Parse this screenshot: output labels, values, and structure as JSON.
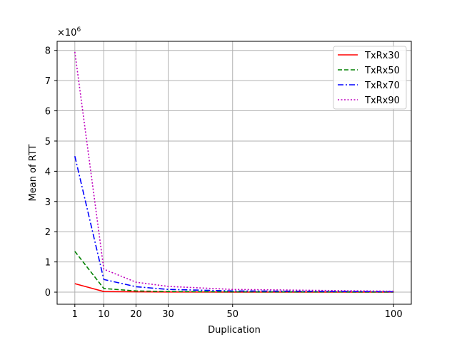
{
  "chart_data": {
    "type": "line",
    "xlabel": "Duplication",
    "ylabel": "Mean of RTT",
    "y_multiplier": "×10",
    "y_multiplier_exp": "6",
    "xlim": [
      -4.5,
      105.5
    ],
    "ylim": [
      -0.4,
      8.3
    ],
    "xticks": [
      1,
      10,
      20,
      30,
      50,
      100
    ],
    "xtick_labels": [
      "1",
      "10",
      "20",
      "30",
      "50",
      "100"
    ],
    "yticks": [
      0,
      1,
      2,
      3,
      4,
      5,
      6,
      7,
      8
    ],
    "ytick_labels": [
      "0",
      "1",
      "2",
      "3",
      "4",
      "5",
      "6",
      "7",
      "8"
    ],
    "grid": true,
    "legend_position": "top-right",
    "x": [
      1,
      10,
      20,
      30,
      50,
      100
    ],
    "series": [
      {
        "name": "TxRx30",
        "color": "#ff0000",
        "dash": "solid",
        "values": [
          0.28,
          0.02,
          0.01,
          0.005,
          0.003,
          0.002
        ]
      },
      {
        "name": "TxRx50",
        "color": "#008000",
        "dash": "dashed",
        "values": [
          1.35,
          0.12,
          0.04,
          0.02,
          0.01,
          0.005
        ]
      },
      {
        "name": "TxRx70",
        "color": "#0000ff",
        "dash": "dashdot",
        "values": [
          4.5,
          0.42,
          0.18,
          0.09,
          0.04,
          0.015
        ]
      },
      {
        "name": "TxRx90",
        "color": "#bf00bf",
        "dash": "dotted",
        "values": [
          7.95,
          0.76,
          0.33,
          0.19,
          0.09,
          0.03
        ]
      }
    ]
  }
}
